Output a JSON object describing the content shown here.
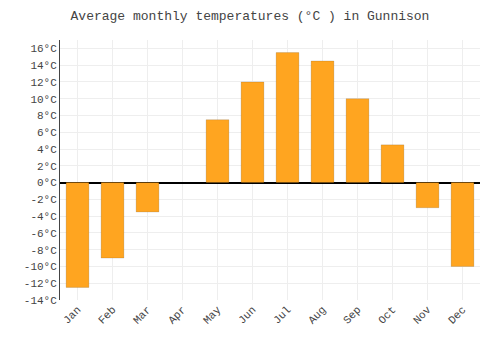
{
  "chart_data": {
    "type": "bar",
    "title": "Average monthly temperatures (°C ) in Gunnison",
    "categories": [
      "Jan",
      "Feb",
      "Mar",
      "Apr",
      "May",
      "Jun",
      "Jul",
      "Aug",
      "Sep",
      "Oct",
      "Nov",
      "Dec"
    ],
    "values": [
      -12.5,
      -9.0,
      -3.5,
      0.0,
      7.5,
      12.0,
      15.5,
      14.5,
      10.0,
      4.5,
      -3.0,
      -10.0
    ],
    "color": "#FFA520",
    "ylim": [
      -14,
      17
    ],
    "yticks": [
      {
        "value": -14,
        "label": "-14°C"
      },
      {
        "value": -12,
        "label": "-12°C"
      },
      {
        "value": -10,
        "label": "-10°C"
      },
      {
        "value": -8,
        "label": "-8°C"
      },
      {
        "value": -6,
        "label": "-6°C"
      },
      {
        "value": -4,
        "label": "-4°C"
      },
      {
        "value": -2,
        "label": "-2°C"
      },
      {
        "value": 0,
        "label": "0°C"
      },
      {
        "value": 2,
        "label": "2°C"
      },
      {
        "value": 4,
        "label": "4°C"
      },
      {
        "value": 6,
        "label": "6°C"
      },
      {
        "value": 8,
        "label": "8°C"
      },
      {
        "value": 10,
        "label": "10°C"
      },
      {
        "value": 12,
        "label": "12°C"
      },
      {
        "value": 14,
        "label": "14°C"
      },
      {
        "value": 16,
        "label": "16°C"
      }
    ],
    "grid": true
  }
}
